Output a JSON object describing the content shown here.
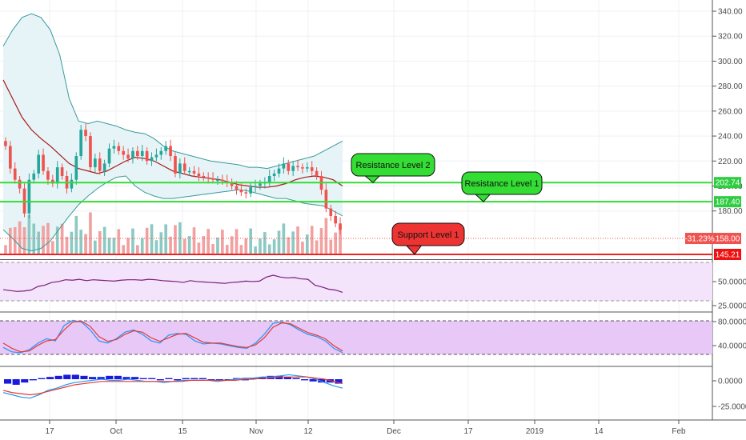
{
  "chart_data": [
    {
      "type": "candlestick",
      "ylim": [
        140,
        345
      ],
      "y_ticks": [
        "340.00",
        "320.00",
        "300.00",
        "280.00",
        "260.00",
        "240.00",
        "220.00",
        "200.00",
        "180.00"
      ],
      "x_labels": [
        "17",
        "Oct",
        "15",
        "Nov",
        "12",
        "Dec",
        "17",
        "2019",
        "14",
        "Feb"
      ],
      "close": [
        232,
        214,
        205,
        198,
        178,
        205,
        210,
        225,
        212,
        205,
        202,
        215,
        208,
        198,
        205,
        224,
        245,
        240,
        215,
        222,
        212,
        218,
        230,
        232,
        228,
        225,
        222,
        228,
        224,
        228,
        220,
        223,
        225,
        228,
        232,
        224,
        210,
        218,
        212,
        212,
        210,
        208,
        207,
        206,
        205,
        205,
        204,
        203,
        200,
        197,
        195,
        194,
        199,
        200,
        202,
        203,
        208,
        210,
        214,
        218,
        212,
        216,
        215,
        214,
        215,
        212,
        208,
        197,
        182,
        176,
        170,
        165
      ],
      "horizontal_lines": [
        {
          "label": "Resistance Level 2",
          "value": 202.74,
          "color": "#33dd33"
        },
        {
          "label": "Resistance Level 1",
          "value": 187.4,
          "color": "#33dd33"
        },
        {
          "label": "Support Level 1",
          "value": 145.21,
          "color": "#ee2222"
        }
      ],
      "price_tags": [
        {
          "text": "202.74",
          "value": 202.74,
          "color": "#2ecc40"
        },
        {
          "text": "187.40",
          "value": 187.4,
          "color": "#2ecc40"
        },
        {
          "text": "158.00",
          "value": 158.0,
          "color": "#ef5350"
        },
        {
          "text": "145.21",
          "value": 145.21,
          "color": "#ee1111"
        }
      ],
      "percent_tag": "-31.23%",
      "annotations": [
        {
          "text": "Resistance Level 2",
          "color": "#33dd33",
          "pointer_value": 202.74
        },
        {
          "text": "Resistance Level 1",
          "color": "#33dd33",
          "pointer_value": 187.4
        },
        {
          "text": "Support Level 1",
          "color": "#ee3333",
          "pointer_value": 145.21
        }
      ],
      "bollinger_upper": [
        312,
        325,
        335,
        338,
        335,
        325,
        305,
        270,
        252,
        250,
        252,
        250,
        248,
        245,
        243,
        242,
        238,
        232,
        228,
        226,
        224,
        222,
        220,
        219,
        218,
        217,
        215,
        215,
        214,
        216,
        218,
        220,
        222,
        224,
        228,
        232,
        236
      ],
      "bollinger_lower": [
        165,
        158,
        150,
        148,
        150,
        156,
        166,
        176,
        185,
        192,
        198,
        203,
        207,
        208,
        200,
        195,
        192,
        190,
        190,
        191,
        192,
        193,
        194,
        195,
        196,
        197,
        196,
        194,
        192,
        190,
        190,
        188,
        186,
        185,
        184,
        180,
        176
      ],
      "moving_average": [
        285,
        270,
        255,
        245,
        238,
        232,
        225,
        218,
        214,
        212,
        210,
        212,
        216,
        220,
        223,
        222,
        220,
        216,
        212,
        210,
        208,
        207,
        206,
        205,
        203,
        201,
        200,
        199,
        199,
        200,
        202,
        205,
        207,
        208,
        207,
        205,
        200
      ]
    },
    {
      "type": "line",
      "name": "rsi",
      "y_ticks": [
        "50.0000",
        "25.0000"
      ],
      "ylim": [
        15,
        85
      ],
      "values": [
        28,
        26,
        24,
        25,
        27,
        35,
        38,
        44,
        46,
        50,
        49,
        51,
        48,
        50,
        49,
        48,
        47,
        49,
        50,
        50,
        49,
        51,
        50,
        48,
        47,
        46,
        44,
        48,
        46,
        45,
        44,
        43,
        42,
        44,
        45,
        47,
        46,
        47,
        56,
        60,
        56,
        54,
        55,
        52,
        51,
        38,
        34,
        29,
        27,
        22
      ]
    },
    {
      "type": "line",
      "name": "stochastic",
      "y_ticks": [
        "80.0000",
        "40.0000"
      ],
      "ylim": [
        5,
        100
      ],
      "k": [
        30,
        20,
        18,
        25,
        40,
        50,
        45,
        80,
        92,
        88,
        70,
        45,
        40,
        50,
        65,
        70,
        60,
        45,
        40,
        58,
        62,
        60,
        45,
        38,
        40,
        38,
        34,
        30,
        28,
        40,
        60,
        85,
        88,
        82,
        70,
        60,
        55,
        45,
        28,
        18
      ],
      "d": [
        40,
        28,
        20,
        22,
        35,
        45,
        48,
        70,
        88,
        90,
        78,
        55,
        44,
        48,
        60,
        68,
        65,
        52,
        44,
        52,
        60,
        62,
        52,
        42,
        40,
        40,
        36,
        32,
        30,
        36,
        52,
        76,
        86,
        84,
        74,
        64,
        58,
        50,
        34,
        22
      ]
    },
    {
      "type": "bar",
      "name": "macd",
      "y_ticks": [
        "0.0000",
        "-25.0000"
      ],
      "ylim": [
        -33,
        8
      ],
      "histogram": [
        -4,
        -5,
        -3,
        -1,
        1,
        2,
        3,
        4,
        4,
        3,
        2,
        2,
        3,
        3,
        2,
        2,
        1,
        1,
        -1,
        1,
        -1,
        1,
        1,
        1,
        0,
        0,
        0,
        1,
        -1,
        1,
        2,
        3,
        3,
        2,
        1,
        -1,
        -2,
        -3,
        -3,
        -4
      ],
      "macd_line": [
        -12,
        -14,
        -16,
        -17,
        -14,
        -10,
        -8,
        -5,
        -3,
        -2,
        -1,
        0,
        -1,
        -1,
        0,
        -1,
        -2,
        -2,
        -3,
        -2,
        -1,
        -1,
        -1,
        -1,
        -2,
        -1,
        0,
        1,
        1,
        2,
        2,
        3,
        4,
        3,
        2,
        0,
        -3,
        -6,
        -8
      ],
      "signal_line": [
        -10,
        -12,
        -13,
        -14,
        -13,
        -11,
        -9,
        -7,
        -5,
        -4,
        -3,
        -2,
        -2,
        -2,
        -2,
        -2,
        -2,
        -2,
        -2,
        -2,
        -2,
        -1,
        -1,
        -1,
        -1,
        -1,
        -1,
        0,
        0,
        1,
        1,
        2,
        2,
        2,
        2,
        1,
        0,
        -2,
        -4
      ]
    }
  ]
}
